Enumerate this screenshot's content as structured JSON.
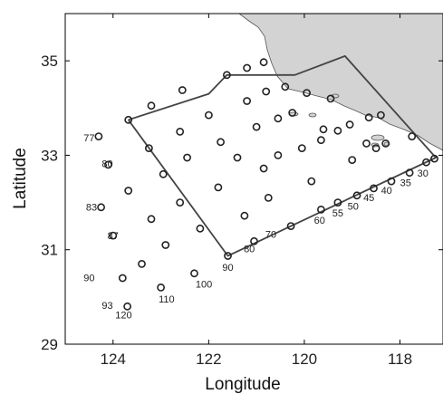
{
  "map": {
    "xlabel": "Longitude",
    "ylabel": "Latitude",
    "x_ticks": [
      {
        "value": 124,
        "label": "124"
      },
      {
        "value": 122,
        "label": "122"
      },
      {
        "value": 120,
        "label": "120"
      },
      {
        "value": 118,
        "label": "118"
      }
    ],
    "y_ticks": [
      {
        "value": 35,
        "label": "35"
      },
      {
        "value": 33,
        "label": "33"
      },
      {
        "value": 31,
        "label": "31"
      },
      {
        "value": 29,
        "label": "29"
      }
    ],
    "colors": {
      "land": "#d3d3d3",
      "coast": "#555555",
      "station": "#222222",
      "polygon": "#444444"
    },
    "line_labels": [
      {
        "text": "77",
        "lon": 124.5,
        "lat": 33.3
      },
      {
        "text": "80",
        "lon": 124.12,
        "lat": 32.75
      },
      {
        "text": "83",
        "lon": 124.45,
        "lat": 31.83
      },
      {
        "text": "87",
        "lon": 124.0,
        "lat": 31.22
      },
      {
        "text": "90",
        "lon": 124.5,
        "lat": 30.33
      },
      {
        "text": "93",
        "lon": 124.12,
        "lat": 29.75
      },
      {
        "text": "120",
        "lon": 123.78,
        "lat": 29.55
      },
      {
        "text": "110",
        "lon": 122.88,
        "lat": 29.88
      },
      {
        "text": "100",
        "lon": 122.1,
        "lat": 30.2
      },
      {
        "text": "90",
        "lon": 121.6,
        "lat": 30.55
      },
      {
        "text": "80",
        "lon": 121.15,
        "lat": 30.95
      },
      {
        "text": "70",
        "lon": 120.7,
        "lat": 31.25
      },
      {
        "text": "60",
        "lon": 119.68,
        "lat": 31.55
      },
      {
        "text": "55",
        "lon": 119.3,
        "lat": 31.7
      },
      {
        "text": "50",
        "lon": 118.98,
        "lat": 31.85
      },
      {
        "text": "45",
        "lon": 118.65,
        "lat": 32.03
      },
      {
        "text": "40",
        "lon": 118.28,
        "lat": 32.18
      },
      {
        "text": "35",
        "lon": 117.88,
        "lat": 32.35
      },
      {
        "text": "30",
        "lon": 117.52,
        "lat": 32.55
      }
    ]
  },
  "chart_data": {
    "type": "scatter",
    "xlabel": "Longitude",
    "ylabel": "Latitude",
    "xlim": [
      125.0,
      117.1
    ],
    "ylim": [
      29.0,
      36.0
    ],
    "x_ticks": [
      124,
      122,
      120,
      118
    ],
    "y_ticks": [
      35,
      33,
      31,
      29
    ],
    "outside_stations": [
      [
        124.3,
        33.4
      ],
      [
        124.1,
        32.8
      ],
      [
        124.25,
        31.9
      ],
      [
        124.0,
        31.3
      ],
      [
        123.8,
        30.4
      ],
      [
        123.7,
        29.8
      ],
      [
        123.0,
        30.2
      ],
      [
        122.3,
        30.5
      ],
      [
        123.4,
        30.7
      ],
      [
        122.9,
        31.1
      ],
      [
        123.2,
        31.65
      ],
      [
        123.68,
        32.25
      ]
    ],
    "polygon": [
      [
        123.68,
        33.75
      ],
      [
        121.6,
        30.87
      ],
      [
        117.25,
        32.95
      ],
      [
        119.15,
        35.1
      ],
      [
        120.2,
        34.7
      ],
      [
        121.2,
        34.7
      ],
      [
        121.62,
        34.7
      ],
      [
        122.0,
        34.3
      ],
      [
        123.68,
        33.75
      ]
    ],
    "inside_stations": [
      [
        123.68,
        33.75
      ],
      [
        123.25,
        33.15
      ],
      [
        122.95,
        32.6
      ],
      [
        122.6,
        32.0
      ],
      [
        122.18,
        31.45
      ],
      [
        121.6,
        30.87
      ],
      [
        121.05,
        31.18
      ],
      [
        120.28,
        31.5
      ],
      [
        119.65,
        31.85
      ],
      [
        119.3,
        32.0
      ],
      [
        118.9,
        32.15
      ],
      [
        118.55,
        32.3
      ],
      [
        118.18,
        32.45
      ],
      [
        117.8,
        32.63
      ],
      [
        117.45,
        32.85
      ],
      [
        117.28,
        32.93
      ],
      [
        123.2,
        34.05
      ],
      [
        122.55,
        34.38
      ],
      [
        121.62,
        34.7
      ],
      [
        121.2,
        34.85
      ],
      [
        120.85,
        34.97
      ],
      [
        122.6,
        33.5
      ],
      [
        122.0,
        33.85
      ],
      [
        121.2,
        34.15
      ],
      [
        120.8,
        34.35
      ],
      [
        120.4,
        34.45
      ],
      [
        119.95,
        34.32
      ],
      [
        119.45,
        34.2
      ],
      [
        122.45,
        32.95
      ],
      [
        121.75,
        33.28
      ],
      [
        121.0,
        33.6
      ],
      [
        120.55,
        33.78
      ],
      [
        120.25,
        33.9
      ],
      [
        119.6,
        33.55
      ],
      [
        119.05,
        33.65
      ],
      [
        118.65,
        33.8
      ],
      [
        118.4,
        33.85
      ],
      [
        121.8,
        32.32
      ],
      [
        121.4,
        32.95
      ],
      [
        120.85,
        32.72
      ],
      [
        120.55,
        33.0
      ],
      [
        120.05,
        33.15
      ],
      [
        119.65,
        33.32
      ],
      [
        119.3,
        33.52
      ],
      [
        118.7,
        33.25
      ],
      [
        118.5,
        33.15
      ],
      [
        117.75,
        33.4
      ],
      [
        121.25,
        31.72
      ],
      [
        120.75,
        32.1
      ],
      [
        119.85,
        32.45
      ],
      [
        119.0,
        32.9
      ],
      [
        118.3,
        33.25
      ]
    ]
  }
}
